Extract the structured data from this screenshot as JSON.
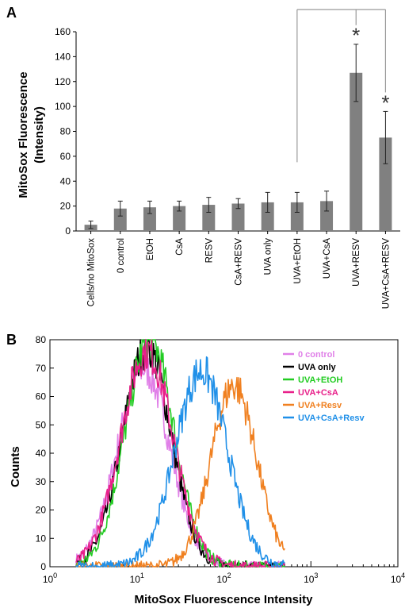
{
  "chart_data": [
    {
      "panel": "A",
      "type": "bar",
      "ylabel": "MitoSox Fluorescence (Intensity)",
      "ylabel_lines": [
        "MitoSox Fluorescence",
        "(Intensity)"
      ],
      "ylim": [
        0,
        160
      ],
      "yticks": [
        0,
        20,
        40,
        60,
        80,
        100,
        120,
        140,
        160
      ],
      "categories": [
        "Cells/no MitoSox",
        "0 control",
        "EtOH",
        "CsA",
        "RESV",
        "CsA+RESV",
        "UVA only",
        "UVA+EtOH",
        "UVA+CsA",
        "UVA+RESV",
        "UVA+CsA+RESV"
      ],
      "values": [
        5,
        18,
        19,
        20,
        21,
        22,
        23,
        23,
        24,
        127,
        75
      ],
      "errors": [
        3,
        6,
        5,
        4,
        6,
        4,
        8,
        8,
        8,
        23,
        21
      ],
      "bar_color": "#808080",
      "significance": [
        {
          "category": "UVA+RESV",
          "label": "*"
        },
        {
          "category": "UVA+CsA+RESV",
          "label": "*"
        }
      ],
      "comparison_bracket": {
        "from": "UVA+EtOH",
        "to": [
          "UVA+RESV",
          "UVA+CsA+RESV"
        ]
      }
    },
    {
      "panel": "B",
      "type": "line",
      "xlabel": "MitoSox Fluorescence Intensity",
      "ylabel": "Counts",
      "xscale": "log",
      "xlim": [
        1,
        10000
      ],
      "ylim": [
        0,
        80
      ],
      "yticks": [
        0,
        10,
        20,
        30,
        40,
        50,
        60,
        70,
        80
      ],
      "xticks": [
        {
          "base": "10",
          "exp": "0"
        },
        {
          "base": "10",
          "exp": "1"
        },
        {
          "base": "10",
          "exp": "2"
        },
        {
          "base": "10",
          "exp": "3"
        },
        {
          "base": "10",
          "exp": "4"
        }
      ],
      "legend_position": "top-right",
      "series": [
        {
          "name": "0 control",
          "color": "#e080e8",
          "peak_x": 12,
          "peak_y": 70,
          "width": 0.3
        },
        {
          "name": "UVA only",
          "color": "#000000",
          "peak_x": 13,
          "peak_y": 77,
          "width": 0.28
        },
        {
          "name": "UVA+EtOH",
          "color": "#22cc22",
          "peak_x": 14,
          "peak_y": 80,
          "width": 0.28
        },
        {
          "name": "UVA+CsA",
          "color": "#e8208a",
          "peak_x": 13,
          "peak_y": 76,
          "width": 0.3
        },
        {
          "name": "UVA+Resv",
          "color": "#f08020",
          "peak_x": 130,
          "peak_y": 64,
          "width": 0.26
        },
        {
          "name": "UVA+CsA+Resv",
          "color": "#2090e8",
          "peak_x": 55,
          "peak_y": 69,
          "width": 0.3
        }
      ]
    }
  ],
  "panels": {
    "a_label": "A",
    "b_label": "B"
  }
}
